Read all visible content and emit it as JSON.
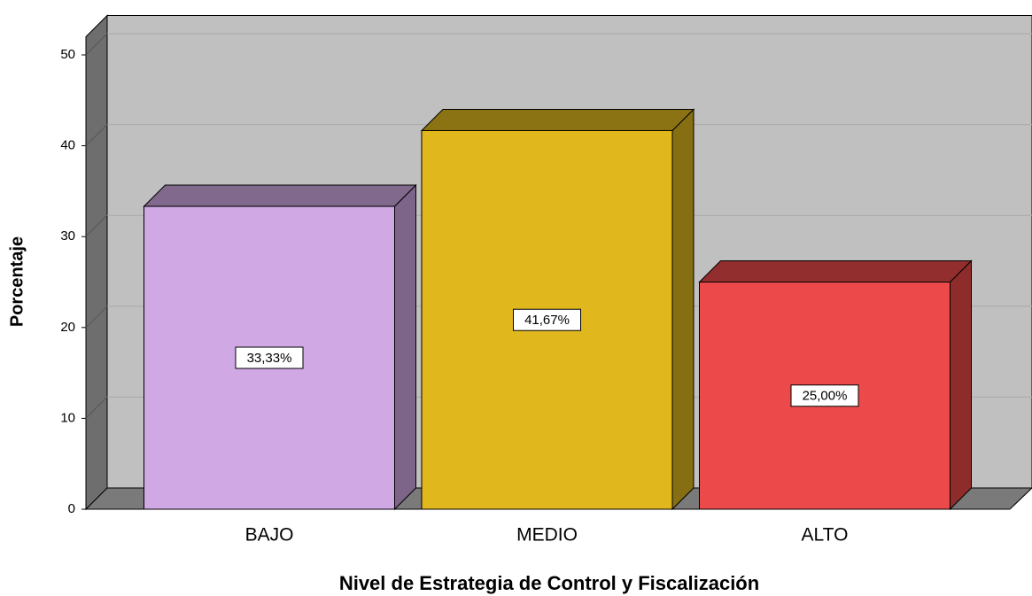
{
  "chart_data": {
    "type": "bar3d",
    "x_label": "Nivel de Estrategia de Control y Fiscalización",
    "y_label": "Porcentaje",
    "categories": [
      "BAJO",
      "MEDIO",
      "ALTO"
    ],
    "values": [
      33.33,
      41.67,
      25.0
    ],
    "value_labels": [
      "33,33%",
      "41,67%",
      "25,00%"
    ],
    "colors": [
      "#d0a8e4",
      "#e0b81e",
      "#ec4a4a"
    ],
    "ylim": [
      0,
      52
    ],
    "yticks": [
      0,
      10,
      20,
      30,
      40,
      50
    ],
    "grid": true
  }
}
